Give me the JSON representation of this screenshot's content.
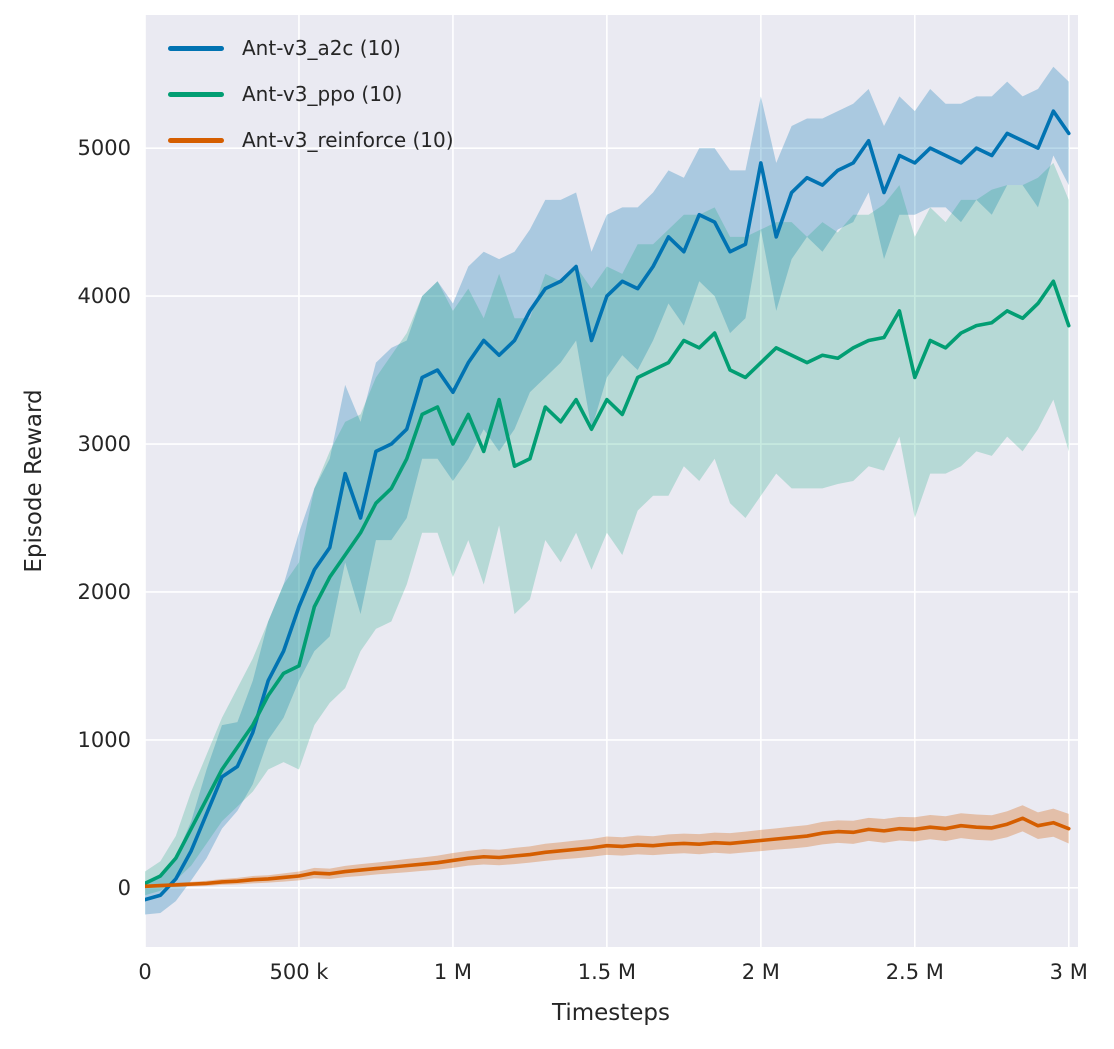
{
  "figure": {
    "background": "#ffffff"
  },
  "axes": {
    "background": "#eaeaf2",
    "grid_color": "#ffffff",
    "text_color": "#262626"
  },
  "chart_data": {
    "type": "line",
    "title": "",
    "xlabel": "Timesteps",
    "ylabel": "Episode Reward",
    "grid": true,
    "legend_position": "upper-left",
    "xlim": [
      0,
      3030000
    ],
    "ylim": [
      -400,
      5900
    ],
    "xticks": {
      "values": [
        0,
        500000,
        1000000,
        1500000,
        2000000,
        2500000,
        3000000
      ],
      "labels": [
        "0",
        "500 k",
        "1 M",
        "1.5 M",
        "2 M",
        "2.5 M",
        "3 M"
      ]
    },
    "yticks": {
      "values": [
        0,
        1000,
        2000,
        3000,
        4000,
        5000
      ],
      "labels": [
        "0",
        "1000",
        "2000",
        "3000",
        "4000",
        "5000"
      ]
    },
    "x": [
      0,
      50000,
      100000,
      150000,
      200000,
      250000,
      300000,
      350000,
      400000,
      450000,
      500000,
      550000,
      600000,
      650000,
      700000,
      750000,
      800000,
      850000,
      900000,
      950000,
      1000000,
      1050000,
      1100000,
      1150000,
      1200000,
      1250000,
      1300000,
      1350000,
      1400000,
      1450000,
      1500000,
      1550000,
      1600000,
      1650000,
      1700000,
      1750000,
      1800000,
      1850000,
      1900000,
      1950000,
      2000000,
      2050000,
      2100000,
      2150000,
      2200000,
      2250000,
      2300000,
      2350000,
      2400000,
      2450000,
      2500000,
      2550000,
      2600000,
      2650000,
      2700000,
      2750000,
      2800000,
      2850000,
      2900000,
      2950000,
      3000000
    ],
    "series": [
      {
        "key": "a2c",
        "name": "Ant-v3_a2c (10)",
        "color": "#0173b2",
        "band_opacity": 0.27,
        "mean": [
          -80,
          -50,
          60,
          250,
          500,
          750,
          820,
          1050,
          1400,
          1600,
          1900,
          2150,
          2300,
          2800,
          2500,
          2950,
          3000,
          3100,
          3450,
          3500,
          3350,
          3550,
          3700,
          3600,
          3700,
          3900,
          4050,
          4100,
          4200,
          3700,
          4000,
          4100,
          4050,
          4200,
          4400,
          4300,
          4550,
          4500,
          4300,
          4350,
          4900,
          4400,
          4700,
          4800,
          4750,
          4850,
          4900,
          5050,
          4700,
          4950,
          4900,
          5000,
          4950,
          4900,
          5000,
          4950,
          5100,
          5050,
          5000,
          5250,
          5100
        ],
        "halfwidth": [
          100,
          120,
          150,
          200,
          300,
          350,
          300,
          350,
          400,
          450,
          500,
          550,
          600,
          600,
          650,
          600,
          650,
          600,
          550,
          600,
          600,
          650,
          600,
          650,
          600,
          550,
          600,
          550,
          500,
          600,
          550,
          500,
          550,
          500,
          450,
          500,
          450,
          500,
          550,
          500,
          450,
          500,
          450,
          400,
          450,
          400,
          400,
          350,
          450,
          400,
          350,
          400,
          350,
          400,
          350,
          400,
          350,
          300,
          400,
          300,
          350
        ]
      },
      {
        "key": "ppo",
        "name": "Ant-v3_ppo (10)",
        "color": "#029e73",
        "band_opacity": 0.22,
        "mean": [
          30,
          80,
          200,
          400,
          600,
          800,
          950,
          1100,
          1300,
          1450,
          1500,
          1900,
          2100,
          2250,
          2400,
          2600,
          2700,
          2900,
          3200,
          3250,
          3000,
          3200,
          2950,
          3300,
          2850,
          2900,
          3250,
          3150,
          3300,
          3100,
          3300,
          3200,
          3450,
          3500,
          3550,
          3700,
          3650,
          3750,
          3500,
          3450,
          3550,
          3650,
          3600,
          3550,
          3600,
          3580,
          3650,
          3700,
          3720,
          3900,
          3450,
          3700,
          3650,
          3750,
          3800,
          3820,
          3900,
          3850,
          3950,
          4100,
          3800
        ],
        "halfwidth": [
          80,
          100,
          150,
          250,
          300,
          350,
          400,
          450,
          500,
          600,
          700,
          800,
          850,
          900,
          800,
          850,
          900,
          850,
          800,
          850,
          900,
          850,
          900,
          850,
          1000,
          950,
          900,
          950,
          900,
          950,
          900,
          950,
          900,
          850,
          900,
          850,
          900,
          850,
          900,
          950,
          900,
          850,
          900,
          850,
          900,
          850,
          900,
          850,
          900,
          850,
          950,
          900,
          850,
          900,
          850,
          900,
          850,
          900,
          850,
          800,
          850
        ]
      },
      {
        "key": "reinforce",
        "name": "Ant-v3_reinforce (10)",
        "color": "#d55e00",
        "band_opacity": 0.3,
        "mean": [
          10,
          15,
          20,
          25,
          30,
          40,
          45,
          55,
          60,
          70,
          80,
          100,
          95,
          110,
          120,
          130,
          140,
          150,
          160,
          170,
          185,
          200,
          210,
          205,
          215,
          225,
          240,
          250,
          260,
          270,
          285,
          280,
          290,
          285,
          295,
          300,
          295,
          305,
          300,
          310,
          320,
          330,
          340,
          350,
          370,
          380,
          375,
          395,
          385,
          400,
          395,
          410,
          400,
          420,
          410,
          405,
          430,
          470,
          420,
          440,
          400
        ],
        "halfwidth": [
          10,
          12,
          15,
          15,
          18,
          20,
          22,
          25,
          25,
          28,
          30,
          35,
          35,
          38,
          40,
          40,
          42,
          45,
          45,
          48,
          50,
          50,
          52,
          52,
          55,
          55,
          58,
          58,
          60,
          60,
          62,
          62,
          64,
          64,
          66,
          66,
          68,
          68,
          70,
          70,
          72,
          72,
          74,
          74,
          76,
          76,
          78,
          78,
          80,
          80,
          82,
          82,
          84,
          84,
          86,
          86,
          88,
          88,
          90,
          95,
          100
        ]
      }
    ]
  }
}
